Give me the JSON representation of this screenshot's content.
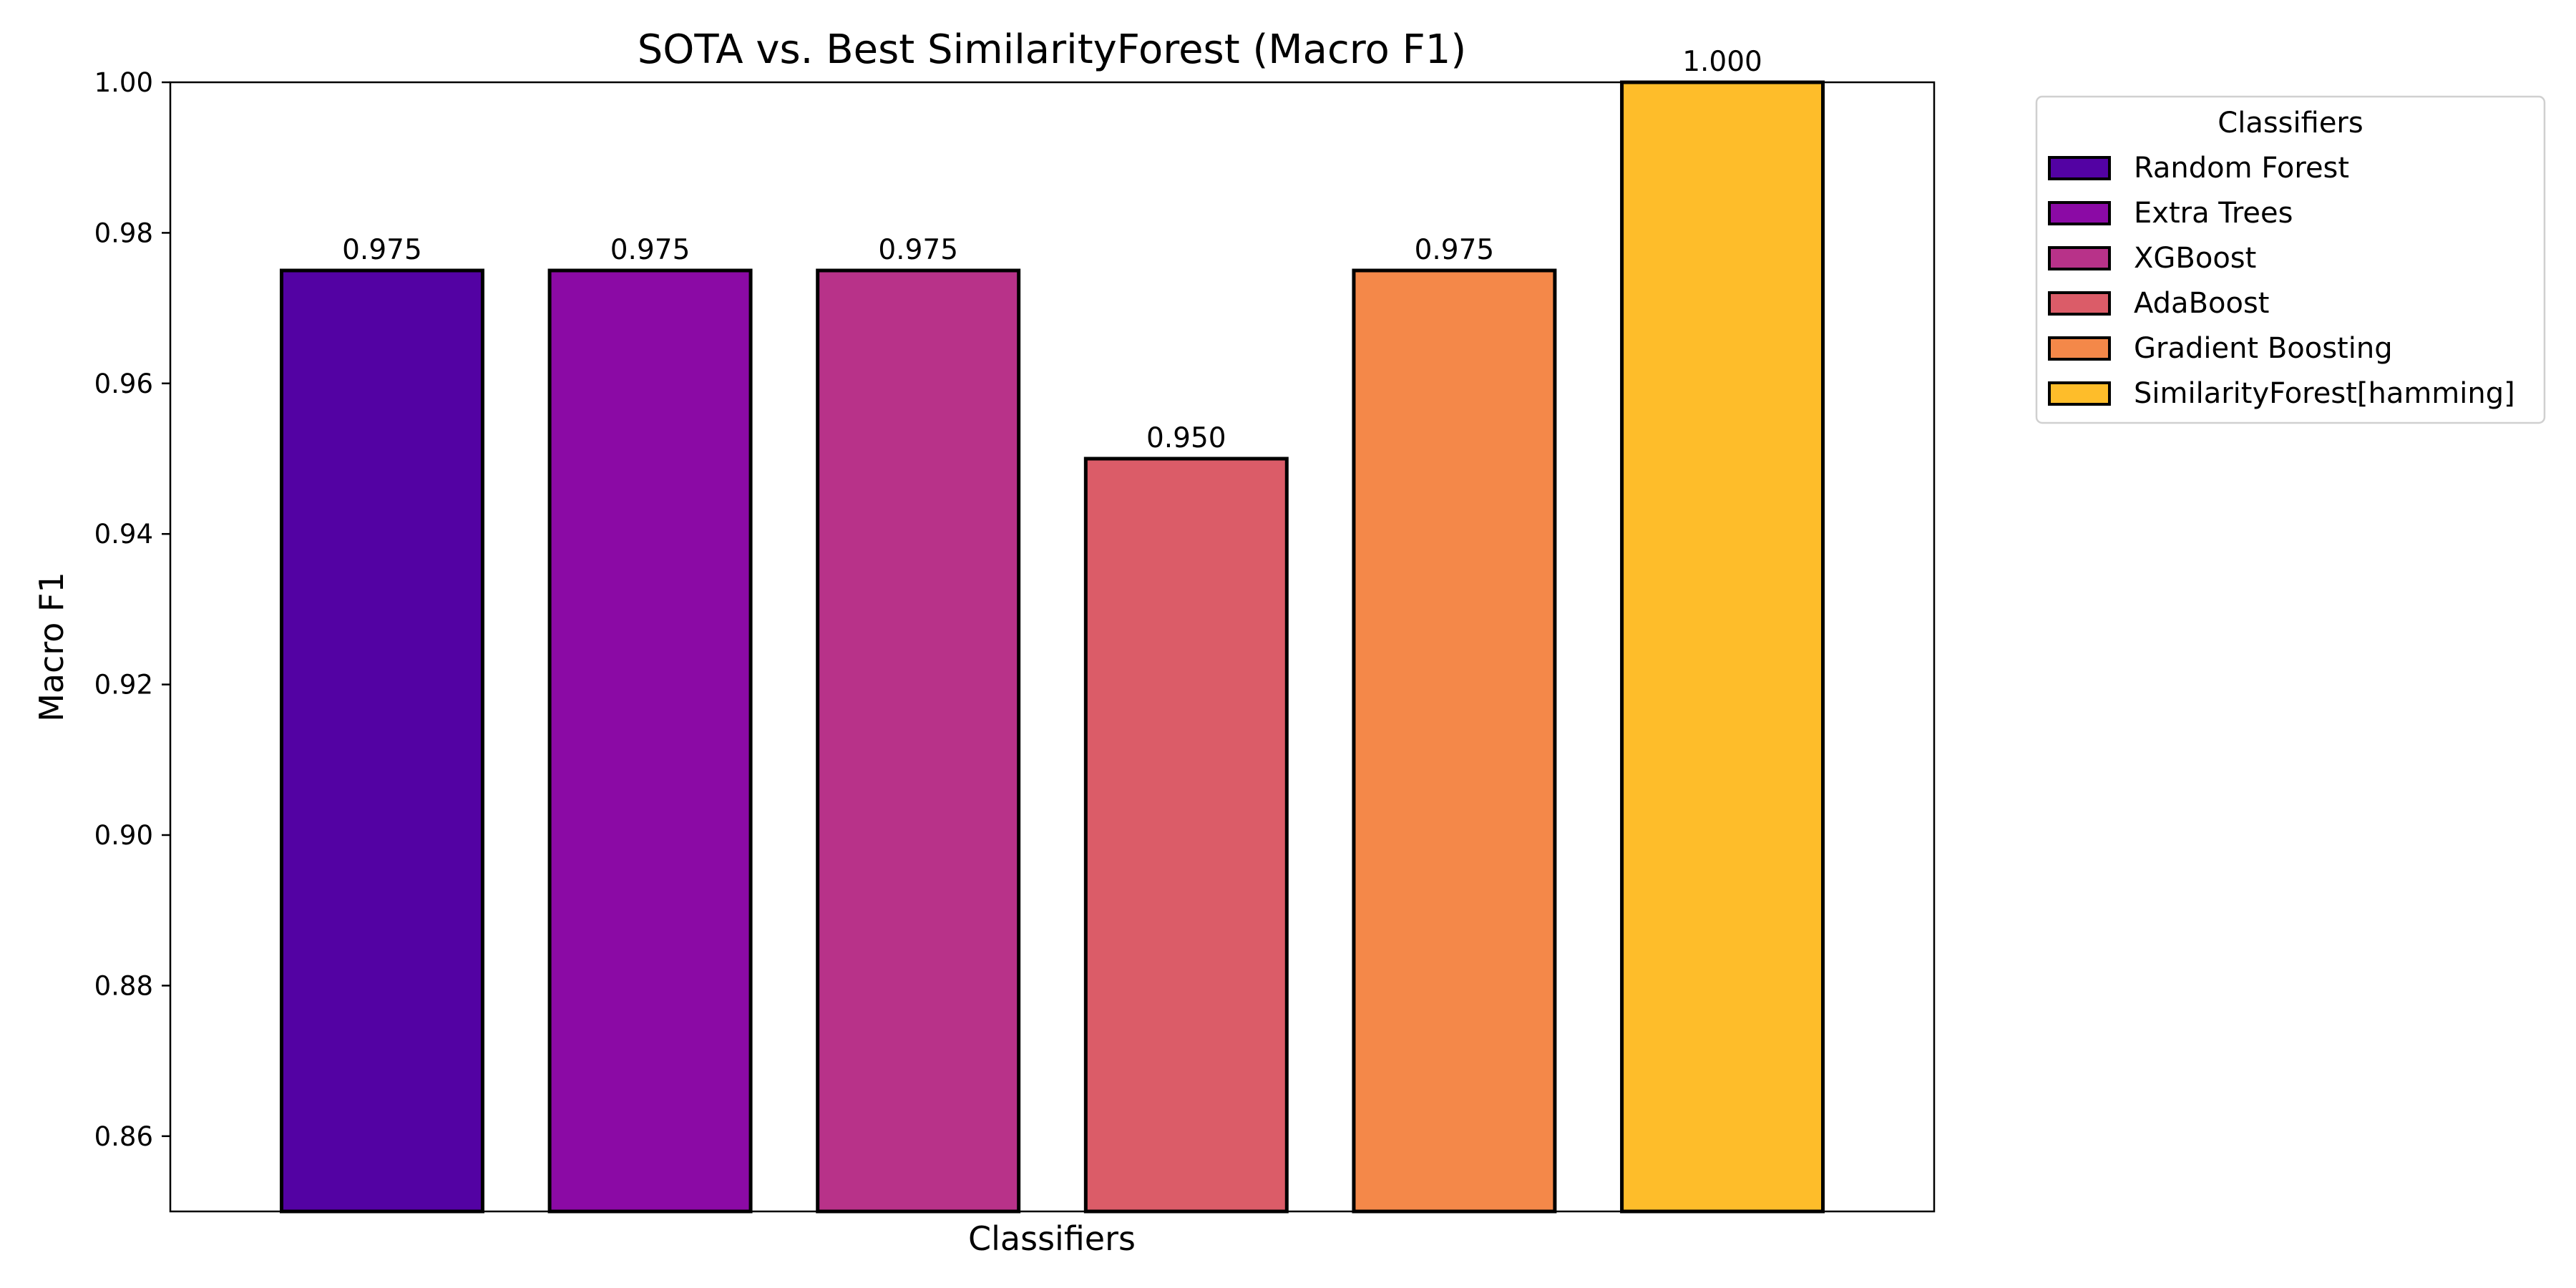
{
  "chart_data": {
    "type": "bar",
    "title": "SOTA vs. Best SimilarityForest (Macro F1)",
    "xlabel": "Classifiers",
    "ylabel": "Macro F1",
    "ylim": [
      0.85,
      1.0
    ],
    "yticks": [
      0.86,
      0.88,
      0.9,
      0.92,
      0.94,
      0.96,
      0.98,
      1.0
    ],
    "ytick_labels": [
      "0.86",
      "0.88",
      "0.90",
      "0.92",
      "0.94",
      "0.96",
      "0.98",
      "1.00"
    ],
    "grid": false,
    "categories": [
      "Random Forest",
      "Extra Trees",
      "XGBoost",
      "AdaBoost",
      "Gradient Boosting",
      "SimilarityForest[hamming]"
    ],
    "values": [
      0.975,
      0.975,
      0.975,
      0.95,
      0.975,
      1.0
    ],
    "value_labels": [
      "0.975",
      "0.975",
      "0.975",
      "0.950",
      "0.975",
      "1.000"
    ],
    "colors": [
      "#5302a3",
      "#8b0aa5",
      "#b83289",
      "#db5c68",
      "#f48849",
      "#febd2a"
    ],
    "edge_color": "#000000",
    "legend": {
      "title": "Classifiers",
      "placement": "outside-top-right"
    }
  }
}
